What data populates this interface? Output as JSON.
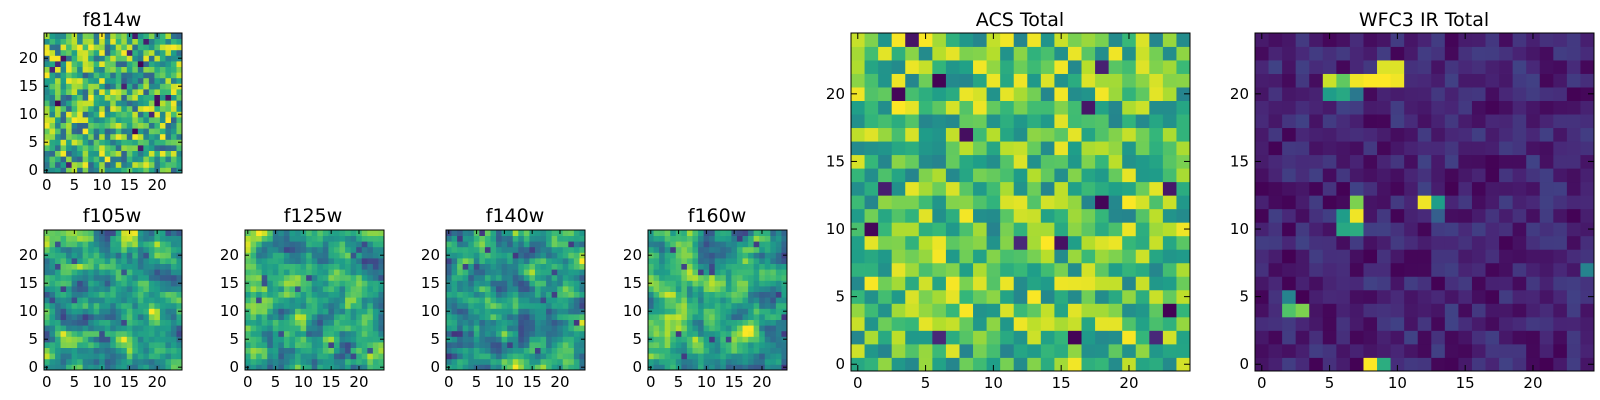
{
  "figure": {
    "colormap": "viridis",
    "background": "#ffffff",
    "colors": {
      "viridis_stops": [
        "#440154",
        "#482878",
        "#3e4989",
        "#31688e",
        "#26828e",
        "#1f9e89",
        "#35b779",
        "#6ece58",
        "#b5de2b",
        "#fde725"
      ]
    }
  },
  "chart_data": [
    {
      "id": "f814w",
      "type": "heatmap",
      "title": "f814w",
      "grid_size": 25,
      "xlim": [
        -0.5,
        24.5
      ],
      "ylim": [
        -0.5,
        24.5
      ],
      "xticks": [
        0,
        5,
        10,
        15,
        20
      ],
      "yticks": [
        0,
        5,
        10,
        15,
        20
      ],
      "pattern": "noise-fine",
      "value_range": [
        0.3,
        1.0
      ],
      "seed": 11
    },
    {
      "id": "f105w",
      "type": "heatmap",
      "title": "f105w",
      "grid_size": 25,
      "xlim": [
        -0.5,
        24.5
      ],
      "ylim": [
        -0.5,
        24.5
      ],
      "xticks": [
        0,
        5,
        10,
        15,
        20
      ],
      "yticks": [
        0,
        5,
        10,
        15,
        20
      ],
      "pattern": "noise-smooth",
      "value_range": [
        0.2,
        1.0
      ],
      "seed": 23
    },
    {
      "id": "f125w",
      "type": "heatmap",
      "title": "f125w",
      "grid_size": 25,
      "xlim": [
        -0.5,
        24.5
      ],
      "ylim": [
        -0.5,
        24.5
      ],
      "xticks": [
        0,
        5,
        10,
        15,
        20
      ],
      "yticks": [
        0,
        5,
        10,
        15,
        20
      ],
      "pattern": "noise-smooth",
      "value_range": [
        0.2,
        1.0
      ],
      "seed": 37
    },
    {
      "id": "f140w",
      "type": "heatmap",
      "title": "f140w",
      "grid_size": 25,
      "xlim": [
        -0.5,
        24.5
      ],
      "ylim": [
        -0.5,
        24.5
      ],
      "xticks": [
        0,
        5,
        10,
        15,
        20
      ],
      "yticks": [
        0,
        5,
        10,
        15,
        20
      ],
      "pattern": "noise-smooth",
      "value_range": [
        0.15,
        1.0
      ],
      "seed": 41
    },
    {
      "id": "f160w",
      "type": "heatmap",
      "title": "f160w",
      "grid_size": 25,
      "xlim": [
        -0.5,
        24.5
      ],
      "ylim": [
        -0.5,
        24.5
      ],
      "xticks": [
        0,
        5,
        10,
        15,
        20
      ],
      "yticks": [
        0,
        5,
        10,
        15,
        20
      ],
      "pattern": "noise-smooth",
      "value_range": [
        0.15,
        1.0
      ],
      "seed": 53
    },
    {
      "id": "acs-total",
      "type": "heatmap",
      "title": "ACS Total",
      "grid_size": 25,
      "xlim": [
        -0.5,
        24.5
      ],
      "ylim": [
        -0.5,
        24.5
      ],
      "xticks": [
        0,
        5,
        10,
        15,
        20
      ],
      "yticks": [
        0,
        5,
        10,
        15,
        20
      ],
      "pattern": "noise-fine",
      "value_range": [
        0.45,
        1.0
      ],
      "seed": 67
    },
    {
      "id": "wfc3-ir-total",
      "type": "heatmap",
      "title": "WFC3 IR Total",
      "grid_size": 25,
      "xlim": [
        -0.5,
        24.5
      ],
      "ylim": [
        -0.5,
        24.5
      ],
      "xticks": [
        0,
        5,
        10,
        15,
        20
      ],
      "yticks": [
        0,
        5,
        10,
        15,
        20
      ],
      "pattern": "low-background",
      "value_range": [
        0.0,
        0.2
      ],
      "seed": 79,
      "hotspots": [
        {
          "x": 5,
          "y": 21,
          "value": 0.92
        },
        {
          "x": 6,
          "y": 21,
          "value": 0.75
        },
        {
          "x": 7,
          "y": 21,
          "value": 0.98
        },
        {
          "x": 8,
          "y": 21,
          "value": 1.0
        },
        {
          "x": 9,
          "y": 21,
          "value": 1.0
        },
        {
          "x": 10,
          "y": 21,
          "value": 0.98
        },
        {
          "x": 9,
          "y": 22,
          "value": 0.95
        },
        {
          "x": 10,
          "y": 22,
          "value": 0.95
        },
        {
          "x": 5,
          "y": 20,
          "value": 0.55
        },
        {
          "x": 6,
          "y": 20,
          "value": 0.6
        },
        {
          "x": 7,
          "y": 20,
          "value": 0.4
        },
        {
          "x": 7,
          "y": 12,
          "value": 0.8
        },
        {
          "x": 7,
          "y": 11,
          "value": 0.98
        },
        {
          "x": 6,
          "y": 11,
          "value": 0.55
        },
        {
          "x": 6,
          "y": 10,
          "value": 0.6
        },
        {
          "x": 7,
          "y": 10,
          "value": 0.62
        },
        {
          "x": 12,
          "y": 12,
          "value": 0.98
        },
        {
          "x": 13,
          "y": 12,
          "value": 0.55
        },
        {
          "x": 13,
          "y": 11,
          "value": 0.3
        },
        {
          "x": 2,
          "y": 5,
          "value": 0.45
        },
        {
          "x": 2,
          "y": 4,
          "value": 0.72
        },
        {
          "x": 3,
          "y": 4,
          "value": 0.8
        },
        {
          "x": 8,
          "y": 0,
          "value": 1.0
        },
        {
          "x": 9,
          "y": 0,
          "value": 0.62
        },
        {
          "x": 24,
          "y": 7,
          "value": 0.45
        }
      ]
    }
  ]
}
